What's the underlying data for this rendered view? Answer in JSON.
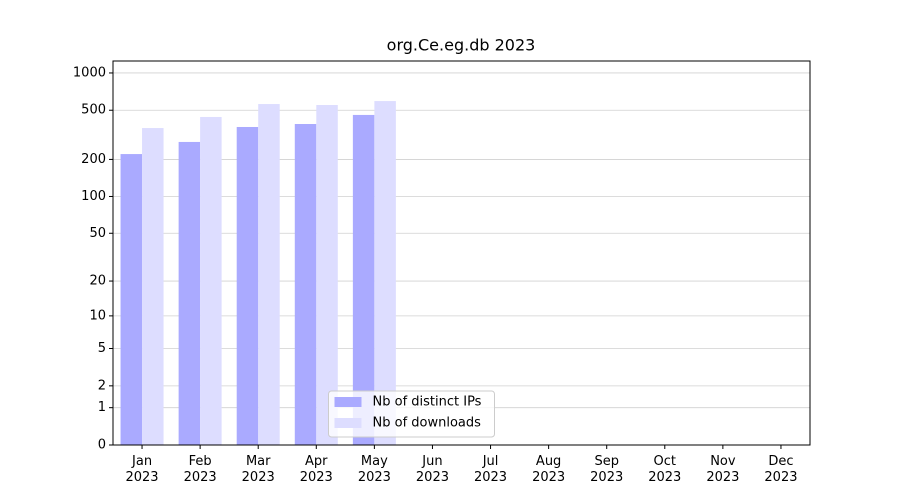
{
  "chart_data": {
    "type": "bar",
    "title": "org.Ce.eg.db 2023",
    "categories": [
      "Jan 2023",
      "Feb 2023",
      "Mar 2023",
      "Apr 2023",
      "May 2023",
      "Jun 2023",
      "Jul 2023",
      "Aug 2023",
      "Sep 2023",
      "Oct 2023",
      "Nov 2023",
      "Dec 2023"
    ],
    "series": [
      {
        "name": "Nb of distinct IPs",
        "color": "#aaaaff",
        "values": [
          221,
          277,
          366,
          387,
          458,
          null,
          null,
          null,
          null,
          null,
          null,
          null
        ]
      },
      {
        "name": "Nb of downloads",
        "color": "#ddddff",
        "values": [
          359,
          441,
          561,
          551,
          593,
          null,
          null,
          null,
          null,
          null,
          null,
          null
        ]
      }
    ],
    "yscale": "log1p",
    "ylim": [
      0,
      1249
    ],
    "yticks": [
      0,
      1,
      2,
      5,
      10,
      20,
      50,
      100,
      200,
      500,
      1000
    ],
    "grid": true,
    "legend_loc": "lower center"
  }
}
